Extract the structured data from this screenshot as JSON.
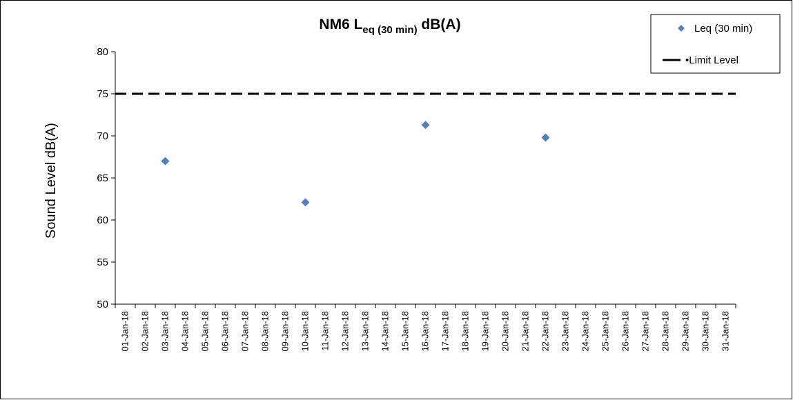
{
  "chart_data": {
    "type": "scatter",
    "title": {
      "main": "NM6 L",
      "subscript": "eq (30 min)",
      "suffix": " dB(A)"
    },
    "ylabel": "Sound Level dB(A)",
    "xlabel": "",
    "ylim": [
      50,
      80
    ],
    "yticks": [
      50,
      55,
      60,
      65,
      70,
      75,
      80
    ],
    "categories": [
      "01-Jan-18",
      "02-Jan-18",
      "03-Jan-18",
      "04-Jan-18",
      "05-Jan-18",
      "06-Jan-18",
      "07-Jan-18",
      "08-Jan-18",
      "09-Jan-18",
      "10-Jan-18",
      "11-Jan-18",
      "12-Jan-18",
      "13-Jan-18",
      "14-Jan-18",
      "15-Jan-18",
      "16-Jan-18",
      "17-Jan-18",
      "18-Jan-18",
      "19-Jan-18",
      "20-Jan-18",
      "21-Jan-18",
      "22-Jan-18",
      "23-Jan-18",
      "24-Jan-18",
      "25-Jan-18",
      "26-Jan-18",
      "27-Jan-18",
      "28-Jan-18",
      "29-Jan-18",
      "30-Jan-18",
      "31-Jan-18"
    ],
    "series": [
      {
        "name": "Leq (30 min)",
        "color": "#4F81BD",
        "marker": "diamond",
        "points": [
          {
            "x": "03-Jan-18",
            "y": 67.0
          },
          {
            "x": "10-Jan-18",
            "y": 62.1
          },
          {
            "x": "16-Jan-18",
            "y": 71.3
          },
          {
            "x": "22-Jan-18",
            "y": 69.8
          }
        ]
      },
      {
        "name": "Limit Level",
        "color": "#000000",
        "style": "dashed",
        "value": 75
      }
    ],
    "legend": {
      "position": "top-right",
      "items": [
        "Leq (30 min)",
        "•Limit Level"
      ]
    },
    "grid": false
  }
}
